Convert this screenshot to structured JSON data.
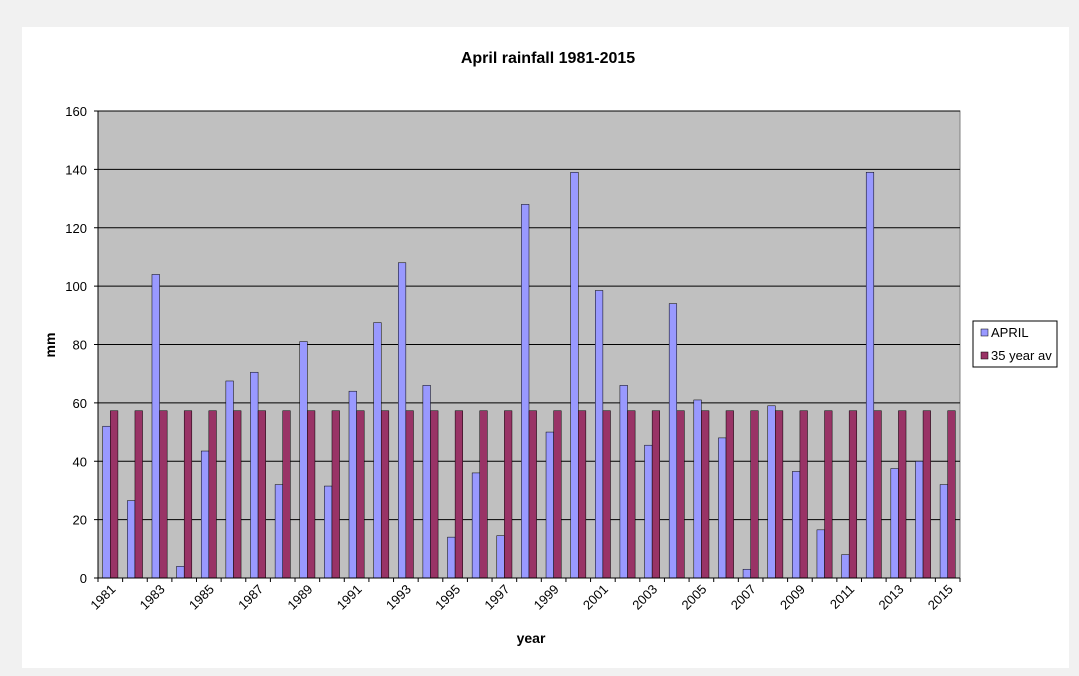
{
  "chart_data": {
    "type": "bar",
    "title": "April rainfall 1981-2015",
    "xlabel": "year",
    "ylabel": "mm",
    "ylim": [
      0,
      160
    ],
    "yticks": [
      0,
      20,
      40,
      60,
      80,
      100,
      120,
      140,
      160
    ],
    "grid": true,
    "legend_position": "right",
    "categories": [
      "1981",
      "1982",
      "1983",
      "1984",
      "1985",
      "1986",
      "1987",
      "1988",
      "1989",
      "1990",
      "1991",
      "1992",
      "1993",
      "1994",
      "1995",
      "1996",
      "1997",
      "1998",
      "1999",
      "2000",
      "2001",
      "2002",
      "2003",
      "2004",
      "2005",
      "2006",
      "2007",
      "2008",
      "2009",
      "2010",
      "2011",
      "2012",
      "2013",
      "2014",
      "2015"
    ],
    "tick_labels": [
      "1981",
      "1983",
      "1985",
      "1987",
      "1989",
      "1991",
      "1993",
      "1995",
      "1997",
      "1999",
      "2001",
      "2003",
      "2005",
      "2007",
      "2009",
      "2011",
      "2013",
      "2015"
    ],
    "series": [
      {
        "name": "APRIL",
        "color": "#9999ff",
        "values": [
          52,
          26.5,
          104,
          4,
          43.5,
          67.5,
          70.5,
          32,
          81,
          31.5,
          64,
          87.5,
          108,
          66,
          14,
          36,
          14.5,
          128,
          50,
          139,
          98.5,
          66,
          45.5,
          94,
          61,
          48,
          3,
          59,
          36.5,
          16.5,
          8,
          139,
          37.5,
          40,
          32
        ]
      },
      {
        "name": "35 year av",
        "color": "#993366",
        "values": [
          57.3,
          57.3,
          57.3,
          57.3,
          57.3,
          57.3,
          57.3,
          57.3,
          57.3,
          57.3,
          57.3,
          57.3,
          57.3,
          57.3,
          57.3,
          57.3,
          57.3,
          57.3,
          57.3,
          57.3,
          57.3,
          57.3,
          57.3,
          57.3,
          57.3,
          57.3,
          57.3,
          57.3,
          57.3,
          57.3,
          57.3,
          57.3,
          57.3,
          57.3,
          57.3
        ]
      }
    ],
    "plot_background": "#c0c0c0"
  }
}
